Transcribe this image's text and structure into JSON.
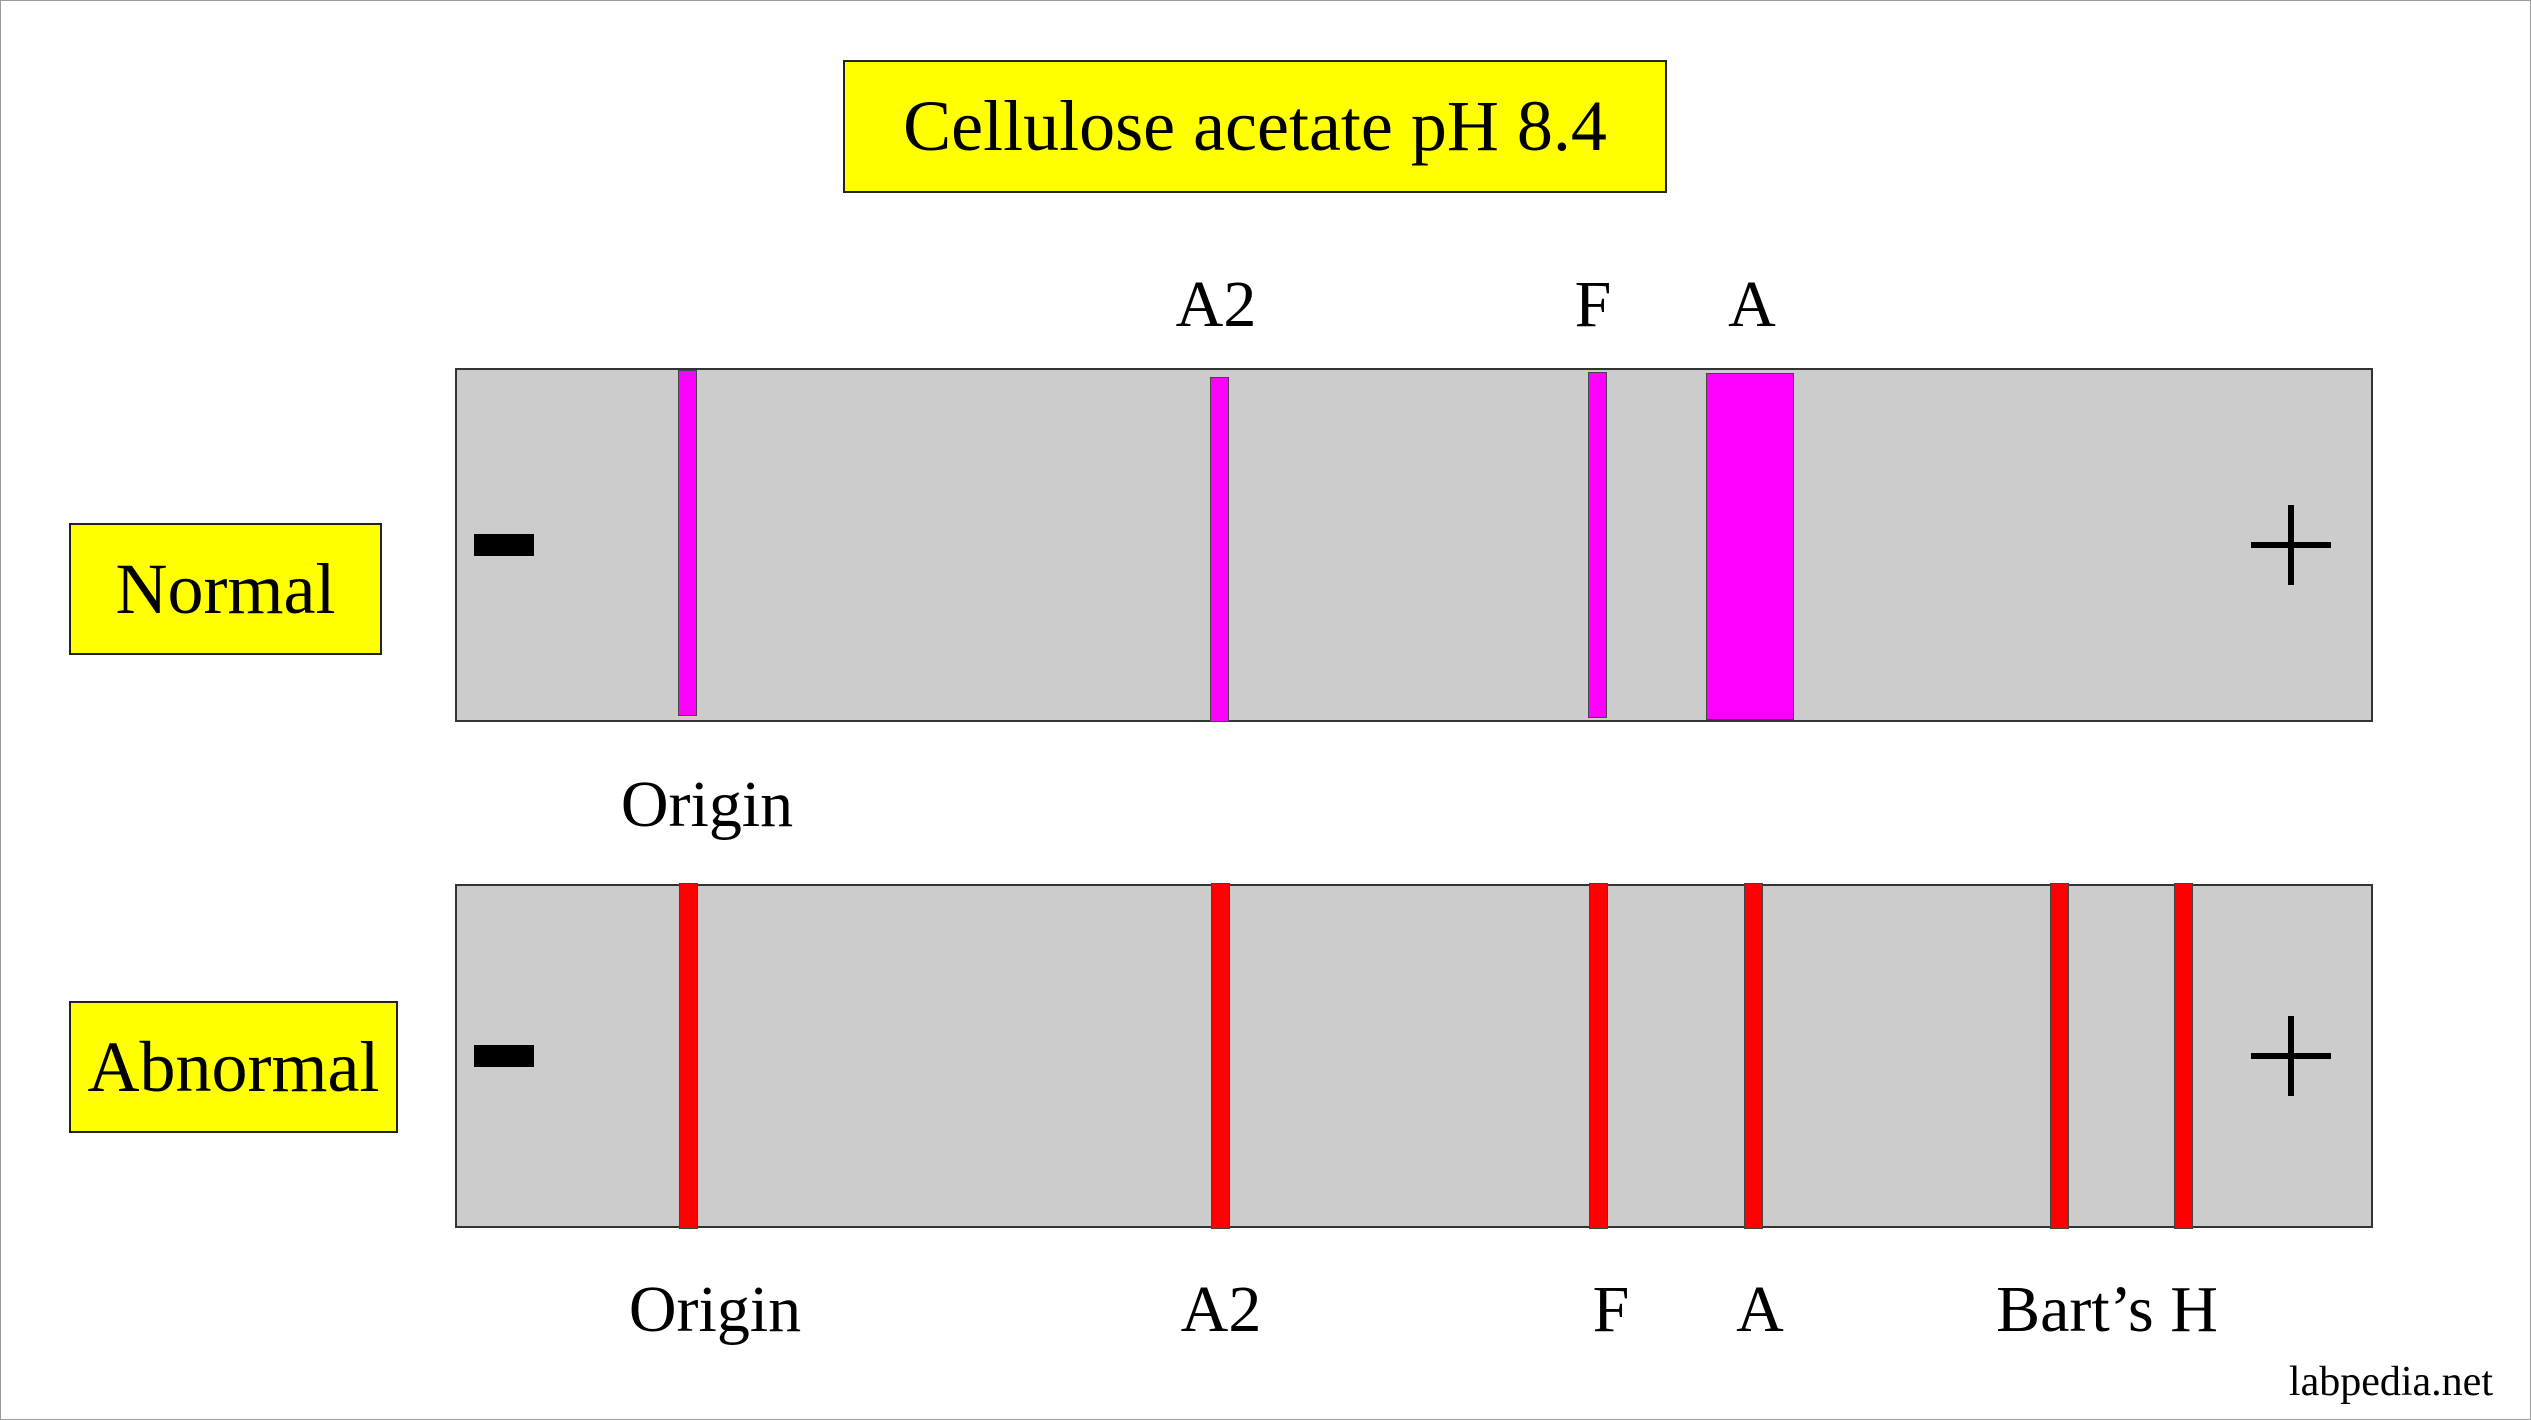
{
  "title": "Cellulose acetate pH 8.4",
  "colors": {
    "label_box": "#ffff00",
    "strip": "#cccccc",
    "normal_band": "#ff00ff",
    "abnormal_band": "#ff0000"
  },
  "electrodes": {
    "cathode_icon": "minus-sign-icon",
    "anode_icon": "plus-sign-icon"
  },
  "normal": {
    "label": "Normal",
    "top_labels": [
      "A2",
      "F",
      "A"
    ],
    "bottom_labels": [
      "Origin"
    ],
    "bands": [
      "Origin",
      "A2",
      "F",
      "A"
    ]
  },
  "abnormal": {
    "label": "Abnormal",
    "bottom_labels": [
      "Origin",
      "A2",
      "F",
      "A",
      "Bart’s H"
    ],
    "bands": [
      "Origin",
      "A2",
      "F",
      "A",
      "Bart’s H",
      "Bart’s H"
    ]
  },
  "watermark": "labpedia.net"
}
